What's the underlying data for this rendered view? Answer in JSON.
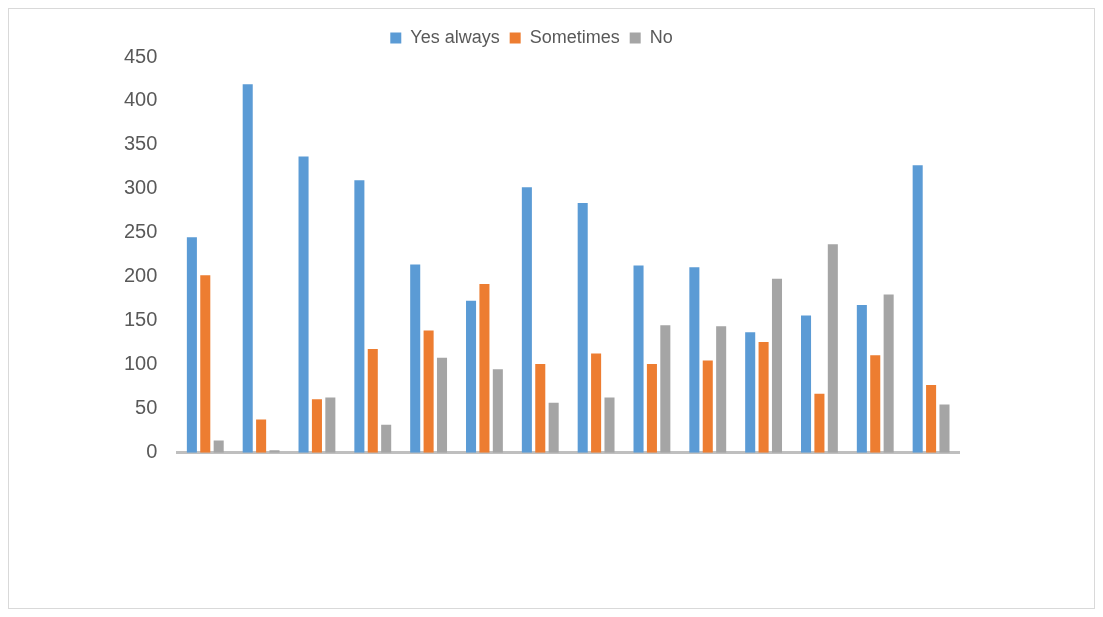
{
  "chart_data": {
    "type": "bar",
    "categories": [
      null,
      null,
      null,
      null,
      null,
      null,
      null,
      null,
      null,
      null,
      null,
      null,
      null,
      null
    ],
    "series": [
      {
        "name": "Yes always",
        "color": "#5b9bd5",
        "values": [
          245,
          419,
          337,
          310,
          214,
          173,
          302,
          284,
          213,
          211,
          137,
          156,
          168,
          327
        ]
      },
      {
        "name": "Sometimes",
        "color": "#ed7d31",
        "values": [
          202,
          38,
          61,
          118,
          139,
          192,
          101,
          113,
          101,
          105,
          126,
          67,
          111,
          77
        ]
      },
      {
        "name": "No",
        "color": "#a5a5a5",
        "values": [
          14,
          3,
          63,
          32,
          108,
          95,
          57,
          63,
          145,
          144,
          198,
          237,
          180,
          55
        ]
      }
    ],
    "ylim": [
      0,
      450
    ],
    "yticks": [
      0,
      50,
      100,
      150,
      200,
      250,
      300,
      350,
      400,
      450
    ],
    "grid": false,
    "legend": "top"
  }
}
